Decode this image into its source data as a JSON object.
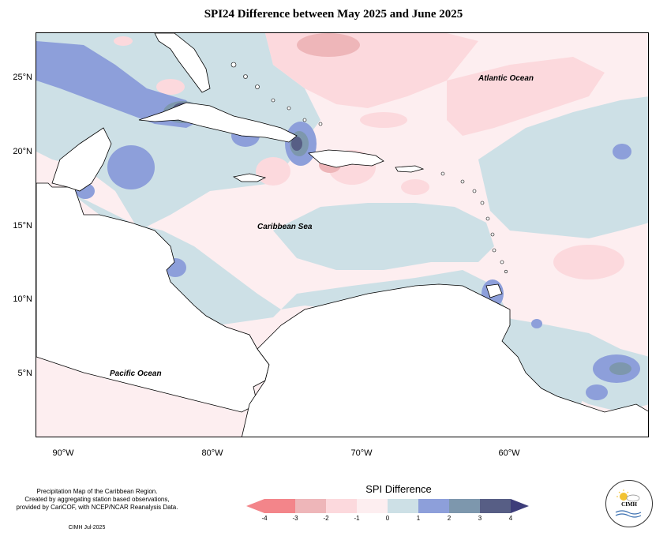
{
  "title": "SPI24 Difference between May 2025 and June 2025",
  "axes": {
    "y_labels": [
      "25°N",
      "20°N",
      "15°N",
      "10°N",
      "5°N"
    ],
    "x_labels": [
      "90°W",
      "80°W",
      "70°W",
      "60°W"
    ]
  },
  "map_labels": {
    "atlantic": "Atlantic Ocean",
    "caribbean": "Caribbean Sea",
    "pacific": "Pacific Ocean"
  },
  "notes": {
    "line1": "Precipitation Map of the Caribbean Region.",
    "line2": "Created by aggregating station based observations,",
    "line3": "provided by CariCOF, with NCEP/NCAR Reanalysis Data.",
    "credit": "CIMH Jul-2025"
  },
  "legend": {
    "title": "SPI Difference",
    "ticks": [
      "-4",
      "-3",
      "-2",
      "-1",
      "0",
      "1",
      "2",
      "3",
      "4"
    ],
    "colors": [
      "#f3858a",
      "#eeb6b9",
      "#fcd9dd",
      "#fdeef0",
      "#cde0e6",
      "#8d9fda",
      "#7d97ad",
      "#575e85"
    ],
    "under_color": "#f3858a",
    "over_color": "#3d3d7a"
  },
  "logo": {
    "text": "CIMH"
  }
}
